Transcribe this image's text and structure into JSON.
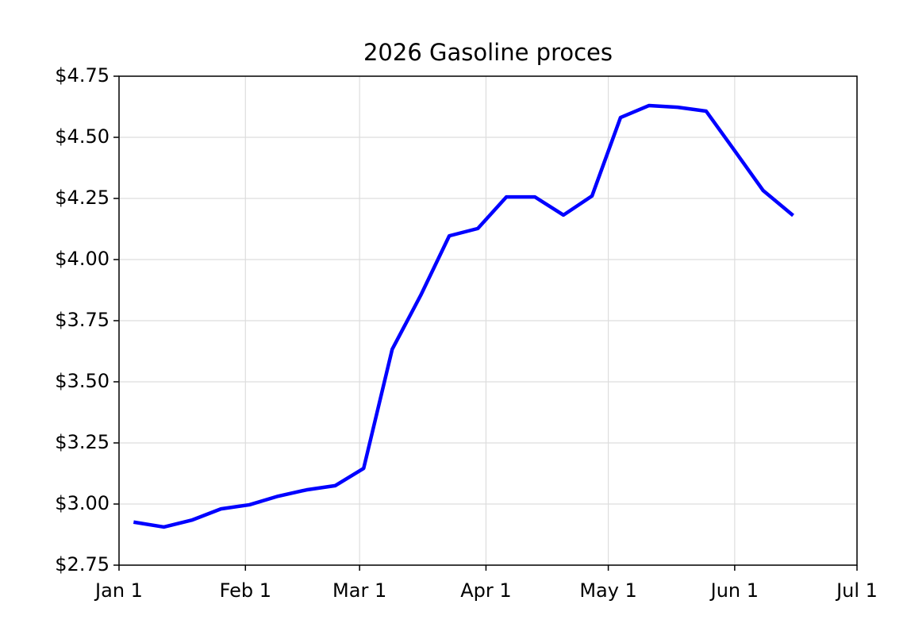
{
  "chart_data": {
    "type": "line",
    "title": "2026 Gasoline proces",
    "x": [
      "Jan 5",
      "Jan 12",
      "Jan 19",
      "Jan 26",
      "Feb 2",
      "Feb 9",
      "Feb 16",
      "Feb 23",
      "Mar 2",
      "Mar 9",
      "Mar 16",
      "Mar 23",
      "Mar 30",
      "Apr 6",
      "Apr 13",
      "Apr 20",
      "Apr 27",
      "May 4",
      "May 11",
      "May 18",
      "May 25",
      "Jun 1",
      "Jun 8",
      "Jun 15"
    ],
    "values": [
      2.925,
      2.906,
      2.935,
      2.98,
      2.997,
      3.032,
      3.058,
      3.075,
      3.146,
      3.633,
      3.854,
      4.097,
      4.127,
      4.256,
      4.256,
      4.182,
      4.26,
      4.581,
      4.63,
      4.623,
      4.607,
      4.445,
      4.282,
      4.185
    ],
    "color": "#0000ff",
    "xlim": [
      "Jan 1",
      "Jul 1"
    ],
    "xticks": [
      "Jan 1",
      "Feb 1",
      "Mar 1",
      "Apr 1",
      "May 1",
      "Jun 1",
      "Jul 1"
    ],
    "ylim": [
      2.75,
      4.75
    ],
    "yticks": [
      {
        "value": 2.75,
        "label": "$2.75"
      },
      {
        "value": 3.0,
        "label": "$3.00"
      },
      {
        "value": 3.25,
        "label": "$3.25"
      },
      {
        "value": 3.5,
        "label": "$3.50"
      },
      {
        "value": 3.75,
        "label": "$3.75"
      },
      {
        "value": 4.0,
        "label": "$4.00"
      },
      {
        "value": 4.25,
        "label": "$4.25"
      },
      {
        "value": 4.5,
        "label": "$4.50"
      },
      {
        "value": 4.75,
        "label": "$4.75"
      }
    ],
    "grid": true
  }
}
